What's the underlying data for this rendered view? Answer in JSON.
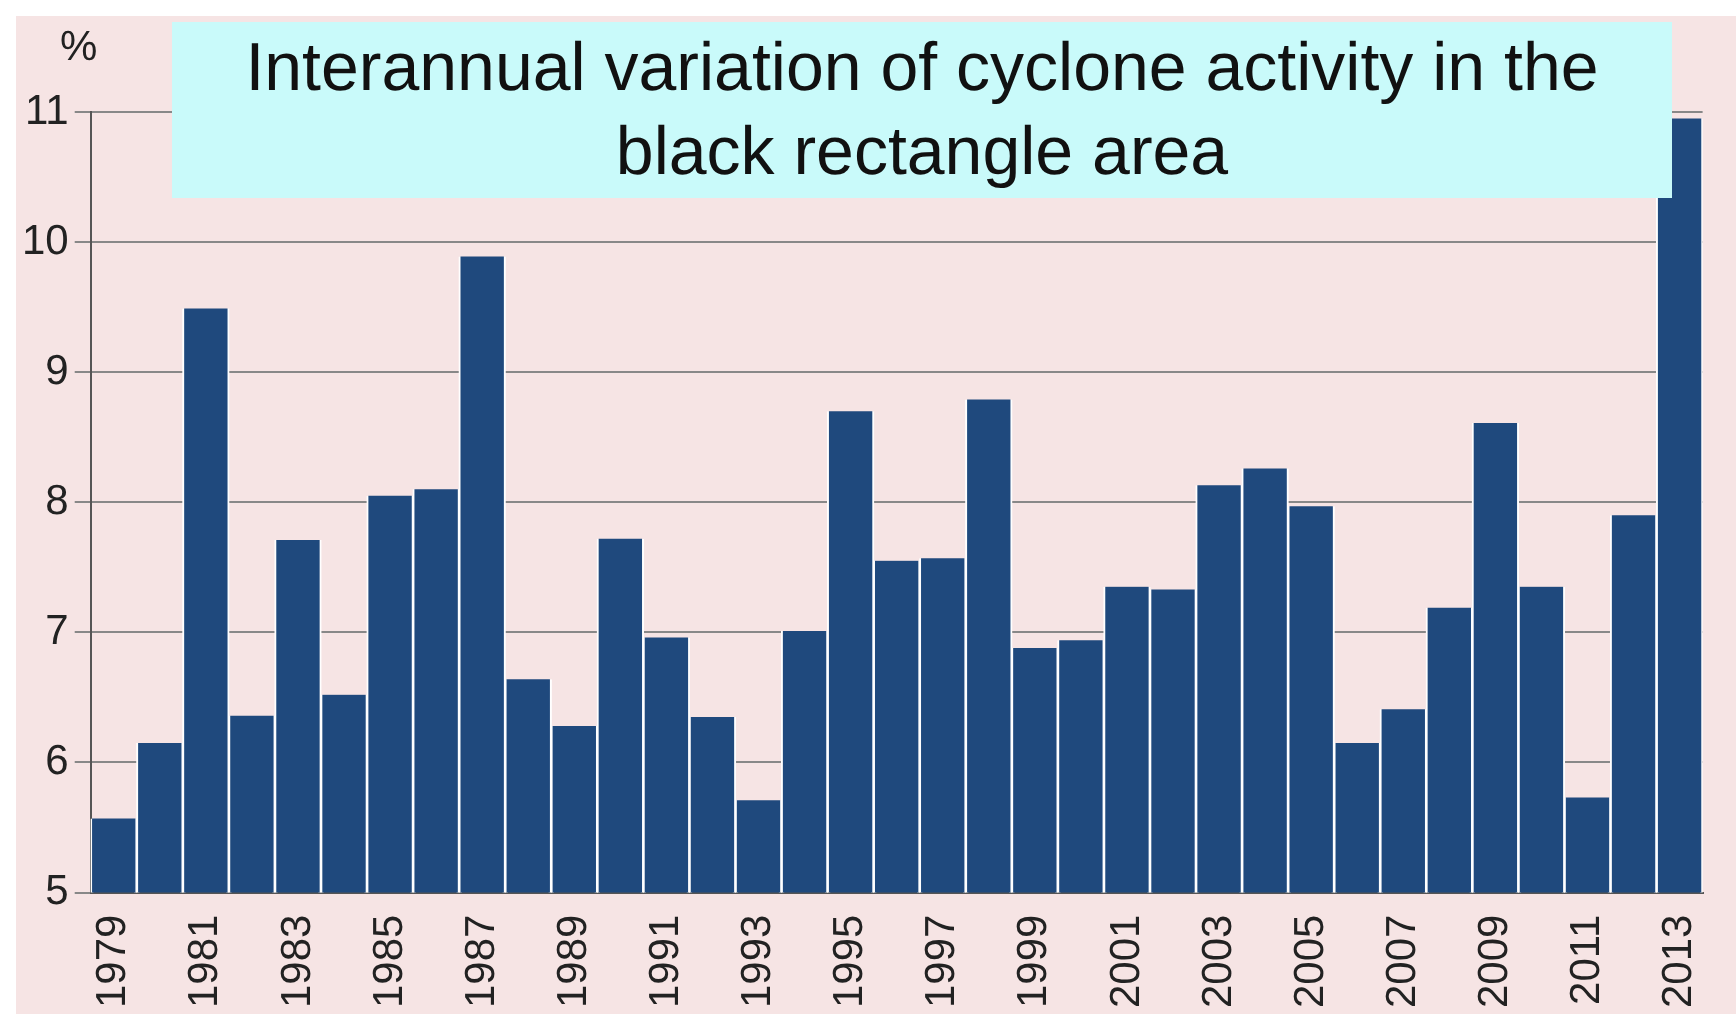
{
  "chart_data": {
    "type": "bar",
    "title": "Interannual variation of cyclone activity in the black rectangle area",
    "ylabel": "%",
    "categories": [
      "1979",
      null,
      "1981",
      null,
      "1983",
      null,
      "1985",
      null,
      "1987",
      null,
      "1989",
      null,
      "1991",
      null,
      "1993",
      null,
      "1995",
      null,
      "1997",
      null,
      "1999",
      null,
      "2001",
      null,
      "2003",
      null,
      "2005",
      null,
      "2007",
      null,
      "2009",
      null,
      "2011",
      null,
      "2013"
    ],
    "values": [
      5.57,
      6.15,
      9.49,
      6.36,
      7.71,
      6.52,
      8.05,
      8.1,
      9.89,
      6.64,
      6.28,
      7.72,
      6.96,
      6.35,
      5.71,
      7.01,
      8.7,
      7.55,
      7.57,
      8.79,
      6.88,
      6.94,
      7.35,
      7.33,
      8.13,
      8.26,
      7.97,
      6.15,
      6.41,
      7.19,
      8.61,
      7.35,
      5.73,
      7.9,
      10.95
    ],
    "color": "#1f497d",
    "ylim": [
      5,
      11
    ],
    "yticks": [
      5,
      6,
      7,
      8,
      9,
      10,
      11
    ],
    "grid": "y"
  }
}
